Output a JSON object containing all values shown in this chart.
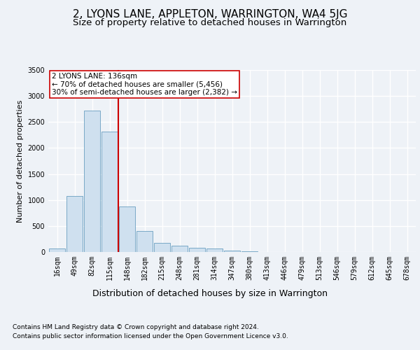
{
  "title": "2, LYONS LANE, APPLETON, WARRINGTON, WA4 5JG",
  "subtitle": "Size of property relative to detached houses in Warrington",
  "xlabel": "Distribution of detached houses by size in Warrington",
  "ylabel": "Number of detached properties",
  "footer_line1": "Contains HM Land Registry data © Crown copyright and database right 2024.",
  "footer_line2": "Contains public sector information licensed under the Open Government Licence v3.0.",
  "annotation_line1": "2 LYONS LANE: 136sqm",
  "annotation_line2": "← 70% of detached houses are smaller (5,456)",
  "annotation_line3": "30% of semi-detached houses are larger (2,382) →",
  "bar_color": "#cfe0ef",
  "bar_edge_color": "#6a9fc0",
  "vline_color": "#cc0000",
  "vline_x_idx": 3.5,
  "categories": [
    "16sqm",
    "49sqm",
    "82sqm",
    "115sqm",
    "148sqm",
    "182sqm",
    "215sqm",
    "248sqm",
    "281sqm",
    "314sqm",
    "347sqm",
    "380sqm",
    "413sqm",
    "446sqm",
    "479sqm",
    "513sqm",
    "546sqm",
    "579sqm",
    "612sqm",
    "645sqm",
    "678sqm"
  ],
  "values": [
    70,
    1080,
    2720,
    2310,
    870,
    400,
    175,
    115,
    80,
    65,
    30,
    15,
    5,
    2,
    1,
    0,
    0,
    0,
    0,
    0,
    0
  ],
  "ylim": [
    0,
    3500
  ],
  "yticks": [
    0,
    500,
    1000,
    1500,
    2000,
    2500,
    3000,
    3500
  ],
  "background_color": "#eef2f7",
  "plot_bg_color": "#eef2f7",
  "grid_color": "#ffffff",
  "title_fontsize": 11,
  "subtitle_fontsize": 9.5,
  "ylabel_fontsize": 8,
  "xlabel_fontsize": 9,
  "tick_fontsize": 7,
  "annotation_fontsize": 7.5,
  "footer_fontsize": 6.5
}
